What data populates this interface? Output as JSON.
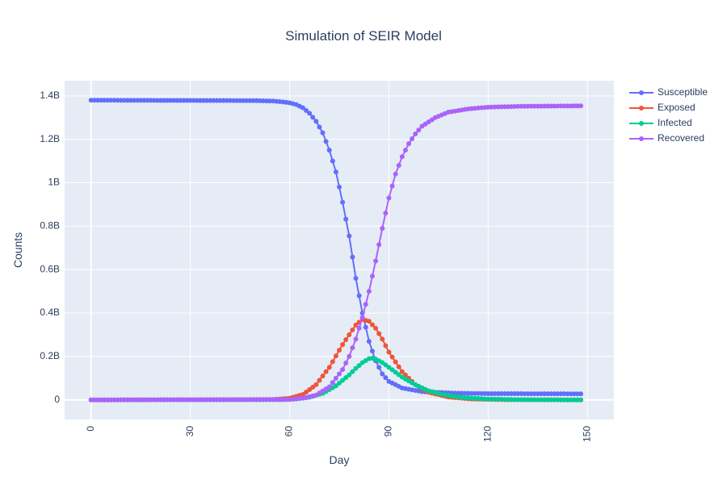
{
  "chart_data": {
    "type": "line",
    "mode": "lines+markers",
    "title": "Simulation of SEIR Model",
    "xlabel": "Day",
    "ylabel": "Counts",
    "xlim": [
      -8,
      158
    ],
    "ylim": [
      -90000000,
      1470000000
    ],
    "x_ticks": [
      0,
      30,
      60,
      90,
      120,
      150
    ],
    "x_tick_labels": [
      "0",
      "30",
      "60",
      "90",
      "120",
      "150"
    ],
    "y_ticks": [
      0,
      200000000,
      400000000,
      600000000,
      800000000,
      1000000000,
      1200000000,
      1400000000
    ],
    "y_tick_labels": [
      "0",
      "0.2B",
      "0.4B",
      "0.6B",
      "0.8B",
      "1B",
      "1.2B",
      "1.4B"
    ],
    "grid": true,
    "legend_position": "top-right",
    "x_start": 0,
    "x_end": 148,
    "series": [
      {
        "name": "Susceptible",
        "color": "#636efa",
        "points": [
          [
            0,
            1380000000
          ],
          [
            50,
            1378000000
          ],
          [
            55,
            1376000000
          ],
          [
            58,
            1372000000
          ],
          [
            60,
            1368000000
          ],
          [
            62,
            1360000000
          ],
          [
            64,
            1345000000
          ],
          [
            66,
            1320000000
          ],
          [
            68,
            1283000000
          ],
          [
            70,
            1230000000
          ],
          [
            72,
            1150000000
          ],
          [
            74,
            1050000000
          ],
          [
            76,
            910000000
          ],
          [
            78,
            755000000
          ],
          [
            80,
            560000000
          ],
          [
            82,
            400000000
          ],
          [
            84,
            270000000
          ],
          [
            86,
            180000000
          ],
          [
            88,
            120000000
          ],
          [
            90,
            85000000
          ],
          [
            94,
            55000000
          ],
          [
            100,
            38000000
          ],
          [
            110,
            31000000
          ],
          [
            120,
            29000000
          ],
          [
            148,
            28000000
          ]
        ]
      },
      {
        "name": "Exposed",
        "color": "#ef553b",
        "points": [
          [
            0,
            0
          ],
          [
            55,
            2000000
          ],
          [
            60,
            8000000
          ],
          [
            64,
            25000000
          ],
          [
            68,
            70000000
          ],
          [
            72,
            150000000
          ],
          [
            76,
            255000000
          ],
          [
            80,
            345000000
          ],
          [
            82,
            370000000
          ],
          [
            84,
            362000000
          ],
          [
            86,
            330000000
          ],
          [
            88,
            280000000
          ],
          [
            90,
            220000000
          ],
          [
            94,
            130000000
          ],
          [
            98,
            70000000
          ],
          [
            102,
            35000000
          ],
          [
            108,
            13000000
          ],
          [
            115,
            4000000
          ],
          [
            125,
            1000000
          ],
          [
            148,
            0
          ]
        ]
      },
      {
        "name": "Infected",
        "color": "#00cc96",
        "points": [
          [
            0,
            0
          ],
          [
            58,
            1000000
          ],
          [
            62,
            4000000
          ],
          [
            66,
            12000000
          ],
          [
            70,
            30000000
          ],
          [
            74,
            65000000
          ],
          [
            78,
            115000000
          ],
          [
            80,
            145000000
          ],
          [
            82,
            172000000
          ],
          [
            84,
            190000000
          ],
          [
            85,
            192000000
          ],
          [
            86,
            188000000
          ],
          [
            88,
            172000000
          ],
          [
            90,
            150000000
          ],
          [
            94,
            105000000
          ],
          [
            98,
            70000000
          ],
          [
            102,
            42000000
          ],
          [
            106,
            26000000
          ],
          [
            110,
            15000000
          ],
          [
            115,
            8000000
          ],
          [
            120,
            4000000
          ],
          [
            130,
            1000000
          ],
          [
            148,
            0
          ]
        ]
      },
      {
        "name": "Recovered",
        "color": "#ab63fa",
        "points": [
          [
            0,
            0
          ],
          [
            60,
            2000000
          ],
          [
            64,
            8000000
          ],
          [
            68,
            22000000
          ],
          [
            72,
            60000000
          ],
          [
            76,
            140000000
          ],
          [
            78,
            200000000
          ],
          [
            80,
            280000000
          ],
          [
            82,
            380000000
          ],
          [
            84,
            500000000
          ],
          [
            86,
            640000000
          ],
          [
            88,
            790000000
          ],
          [
            90,
            930000000
          ],
          [
            92,
            1040000000
          ],
          [
            94,
            1120000000
          ],
          [
            96,
            1180000000
          ],
          [
            98,
            1225000000
          ],
          [
            100,
            1260000000
          ],
          [
            104,
            1300000000
          ],
          [
            108,
            1325000000
          ],
          [
            114,
            1340000000
          ],
          [
            120,
            1348000000
          ],
          [
            130,
            1352000000
          ],
          [
            148,
            1354000000
          ]
        ]
      }
    ]
  }
}
